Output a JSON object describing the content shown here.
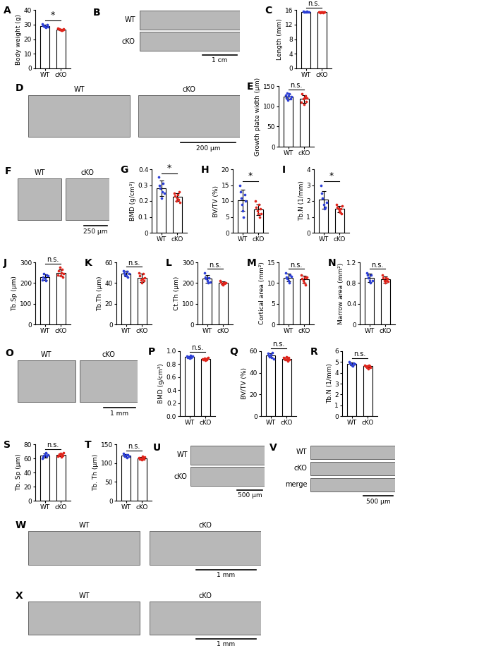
{
  "chart_data": [
    {
      "type": "bar",
      "panel": "A",
      "categories": [
        "WT",
        "cKO"
      ],
      "y_label": "Body weight (g)",
      "values": [
        29.0,
        26.6
      ],
      "errors": [
        0.8,
        0.6
      ],
      "points": [
        [
          30.5,
          29.5,
          29,
          28.8,
          28.5,
          28,
          29.8,
          28.3
        ],
        [
          27.5,
          27,
          26.8,
          26.5,
          26.3,
          26,
          25.8,
          26.6,
          27.2,
          26.4
        ]
      ],
      "significance": "*",
      "colors": [
        "#2c3fd6",
        "#e0241b"
      ],
      "ylim": [
        0,
        40
      ],
      "yticks": [
        0,
        10,
        20,
        30,
        40
      ]
    },
    {
      "type": "bar",
      "panel": "C",
      "categories": [
        "WT",
        "cKO"
      ],
      "y_label": "Length (mm)",
      "values": [
        15.5,
        15.4
      ],
      "errors": [
        0.1,
        0.1
      ],
      "points": [
        [
          15.6,
          15.5,
          15.5,
          15.4,
          15.6,
          15.5,
          15.4
        ],
        [
          15.4,
          15.5,
          15.3,
          15.4,
          15.5,
          15.4,
          15.3,
          15.4,
          15.5
        ]
      ],
      "significance": "n.s.",
      "colors": [
        "#2c3fd6",
        "#e0241b"
      ],
      "ylim": [
        0,
        16
      ],
      "yticks": [
        0,
        4,
        8,
        12,
        16
      ]
    },
    {
      "type": "bar",
      "panel": "E",
      "categories": [
        "WT",
        "cKO"
      ],
      "y_label": "Growth plate width (µm)",
      "values": [
        124,
        118
      ],
      "errors": [
        7,
        9
      ],
      "points": [
        [
          128,
          120,
          132,
          115,
          125,
          130,
          118,
          124
        ],
        [
          110,
          130,
          118,
          105,
          122,
          126,
          112,
          121
        ]
      ],
      "significance": "n.s.",
      "colors": [
        "#2c3fd6",
        "#e0241b"
      ],
      "ylim": [
        0,
        150
      ],
      "yticks": [
        0,
        50,
        100,
        150
      ]
    },
    {
      "type": "bar",
      "panel": "G",
      "categories": [
        "WT",
        "cKO"
      ],
      "y_label": "BMD (g/cm³)",
      "values": [
        0.281,
        0.225
      ],
      "errors": [
        0.05,
        0.025
      ],
      "points": [
        [
          0.35,
          0.3,
          0.28,
          0.22,
          0.26,
          0.31,
          0.25
        ],
        [
          0.25,
          0.23,
          0.2,
          0.22,
          0.24,
          0.21,
          0.26,
          0.19
        ]
      ],
      "significance": "*",
      "colors": [
        "#2c3fd6",
        "#e0241b"
      ],
      "ylim": [
        0,
        0.4
      ],
      "yticks": [
        0,
        0.1,
        0.2,
        0.3,
        0.4
      ]
    },
    {
      "type": "bar",
      "panel": "H",
      "categories": [
        "WT",
        "cKO"
      ],
      "y_label": "BV/TV (%)",
      "values": [
        10.3,
        7.3
      ],
      "errors": [
        3.3,
        1.7
      ],
      "points": [
        [
          15,
          13,
          11,
          9,
          7,
          5,
          12,
          10
        ],
        [
          10,
          8,
          7,
          6,
          9,
          5,
          7.5,
          6
        ]
      ],
      "significance": "*",
      "colors": [
        "#2c3fd6",
        "#e0241b"
      ],
      "ylim": [
        0,
        20
      ],
      "yticks": [
        0,
        5,
        10,
        15,
        20
      ]
    },
    {
      "type": "bar",
      "panel": "I",
      "categories": [
        "WT",
        "cKO"
      ],
      "y_label": "Tb.N (1/mm)",
      "values": [
        2.07,
        1.5
      ],
      "errors": [
        0.55,
        0.2
      ],
      "points": [
        [
          3,
          2.5,
          2.2,
          1.8,
          1.5,
          1.6,
          1.9
        ],
        [
          1.8,
          1.6,
          1.5,
          1.4,
          1.3,
          1.5,
          1.2,
          1.7
        ]
      ],
      "significance": "*",
      "colors": [
        "#2c3fd6",
        "#e0241b"
      ],
      "ylim": [
        0,
        4
      ],
      "yticks": [
        0,
        1,
        2,
        3,
        4
      ]
    },
    {
      "type": "bar",
      "panel": "J",
      "categories": [
        "WT",
        "cKO"
      ],
      "y_label": "Tb.Sp (µm)",
      "values": [
        228,
        250
      ],
      "errors": [
        14,
        16
      ],
      "points": [
        [
          215,
          230,
          245,
          220,
          210,
          240,
          235
        ],
        [
          240,
          260,
          275,
          235,
          250,
          265,
          230,
          245
        ]
      ],
      "significance": "n.s.",
      "colors": [
        "#2c3fd6",
        "#e0241b"
      ],
      "ylim": [
        0,
        300
      ],
      "yticks": [
        0,
        100,
        200,
        300
      ]
    },
    {
      "type": "bar",
      "panel": "K",
      "categories": [
        "WT",
        "cKO"
      ],
      "y_label": "Tb.Th (µm)",
      "values": [
        49,
        45
      ],
      "errors": [
        2.5,
        4
      ],
      "points": [
        [
          52,
          50,
          48,
          47,
          51,
          46,
          49
        ],
        [
          50,
          47,
          43,
          40,
          44,
          49,
          42,
          45
        ]
      ],
      "significance": "n.s.",
      "colors": [
        "#2c3fd6",
        "#e0241b"
      ],
      "ylim": [
        0,
        60
      ],
      "yticks": [
        0,
        20,
        40,
        60
      ]
    },
    {
      "type": "bar",
      "panel": "L",
      "categories": [
        "WT",
        "cKO"
      ],
      "y_label": "Ct.Th (µm)",
      "values": [
        220,
        200
      ],
      "errors": [
        20,
        7
      ],
      "points": [
        [
          250,
          230,
          220,
          210,
          200,
          225,
          205
        ],
        [
          210,
          205,
          195,
          190,
          200,
          198,
          202,
          200
        ]
      ],
      "significance": "n.s.",
      "colors": [
        "#2c3fd6",
        "#e0241b"
      ],
      "ylim": [
        0,
        300
      ],
      "yticks": [
        0,
        100,
        200,
        300
      ]
    },
    {
      "type": "bar",
      "panel": "M",
      "categories": [
        "WT",
        "cKO"
      ],
      "y_label": "Cortical area (mm²)",
      "values": [
        11.3,
        10.9
      ],
      "errors": [
        0.9,
        0.9
      ],
      "points": [
        [
          12.5,
          11.5,
          11,
          10.5,
          10,
          12,
          11.6
        ],
        [
          12,
          11,
          10.5,
          10,
          11.5,
          9.5,
          11.2,
          11.5
        ]
      ],
      "significance": "n.s.",
      "colors": [
        "#2c3fd6",
        "#e0241b"
      ],
      "ylim": [
        0,
        15
      ],
      "yticks": [
        0,
        5,
        10,
        15
      ]
    },
    {
      "type": "bar",
      "panel": "N",
      "categories": [
        "WT",
        "cKO"
      ],
      "y_label": "Marrow area (mm²)",
      "values": [
        0.9,
        0.87
      ],
      "errors": [
        0.08,
        0.06
      ],
      "points": [
        [
          1.0,
          0.95,
          0.9,
          0.85,
          0.8,
          0.95,
          0.85
        ],
        [
          0.95,
          0.9,
          0.85,
          0.8,
          0.9,
          0.85,
          0.88,
          0.83
        ]
      ],
      "significance": "n.s.",
      "colors": [
        "#2c3fd6",
        "#e0241b"
      ],
      "ylim": [
        0,
        1.2
      ],
      "yticks": [
        0,
        0.4,
        0.8,
        1.2
      ]
    },
    {
      "type": "bar",
      "panel": "P",
      "categories": [
        "WT",
        "cKO"
      ],
      "y_label": "BMD (g/cm³)",
      "values": [
        0.91,
        0.88
      ],
      "errors": [
        0.015,
        0.012
      ],
      "points": [
        [
          0.92,
          0.9,
          0.91,
          0.89,
          0.93,
          0.9,
          0.92
        ],
        [
          0.88,
          0.87,
          0.89,
          0.86,
          0.88,
          0.87,
          0.89,
          0.9
        ]
      ],
      "significance": "n.s.",
      "colors": [
        "#2c3fd6",
        "#e0241b"
      ],
      "ylim": [
        0,
        1.0
      ],
      "yticks": [
        {
          "value": 0,
          "label": "0.0"
        },
        {
          "value": 0.2,
          "label": "0.2"
        },
        {
          "value": 0.4,
          "label": "0.4"
        },
        {
          "value": 0.6,
          "label": "0.6"
        },
        {
          "value": 0.8,
          "label": "0.8"
        },
        {
          "value": 1.0,
          "label": "1.0"
        }
      ]
    },
    {
      "type": "bar",
      "panel": "Q",
      "categories": [
        "WT",
        "cKO"
      ],
      "y_label": "BV/TV (%)",
      "values": [
        56,
        53
      ],
      "errors": [
        2,
        1.3
      ],
      "points": [
        [
          58,
          56,
          55,
          57,
          54,
          59,
          53
        ],
        [
          54,
          53,
          52,
          55,
          53,
          51,
          54,
          52
        ]
      ],
      "significance": "n.s.",
      "colors": [
        "#2c3fd6",
        "#e0241b"
      ],
      "ylim": [
        0,
        60
      ],
      "yticks": [
        0,
        20,
        40,
        60
      ]
    },
    {
      "type": "bar",
      "panel": "R",
      "categories": [
        "WT",
        "cKO"
      ],
      "y_label": "Tb.N (1/mm)",
      "values": [
        4.8,
        4.6
      ],
      "errors": [
        0.13,
        0.1
      ],
      "points": [
        [
          5.0,
          4.9,
          4.8,
          4.7,
          4.6,
          4.9,
          4.8
        ],
        [
          4.7,
          4.6,
          4.5,
          4.6,
          4.4,
          4.7,
          4.6,
          4.5
        ]
      ],
      "significance": "n.s.",
      "colors": [
        "#2c3fd6",
        "#e0241b"
      ],
      "ylim": [
        0,
        6
      ],
      "yticks": [
        0,
        1,
        2,
        3,
        4,
        5,
        6
      ]
    },
    {
      "type": "bar",
      "panel": "S",
      "categories": [
        "WT",
        "cKO"
      ],
      "y_label": "Tb. Sp (µm)",
      "values": [
        64,
        65
      ],
      "errors": [
        3,
        2
      ],
      "points": [
        [
          60,
          62,
          64,
          66,
          68,
          63,
          65
        ],
        [
          63,
          64,
          66,
          65,
          67,
          62,
          66,
          64,
          68
        ]
      ],
      "significance": "n.s.",
      "colors": [
        "#2c3fd6",
        "#e0241b"
      ],
      "ylim": [
        0,
        80
      ],
      "yticks": [
        0,
        20,
        40,
        60,
        80
      ]
    },
    {
      "type": "bar",
      "panel": "T",
      "categories": [
        "WT",
        "cKO"
      ],
      "y_label": "Tb. Th (µm)",
      "values": [
        120,
        113
      ],
      "errors": [
        3,
        4
      ],
      "points": [
        [
          125,
          120,
          118,
          122,
          115,
          121,
          119
        ],
        [
          115,
          110,
          112,
          108,
          118,
          113,
          111,
          117
        ]
      ],
      "significance": "n.s.",
      "colors": [
        "#2c3fd6",
        "#e0241b"
      ],
      "ylim": [
        0,
        150
      ],
      "yticks": [
        0,
        50,
        100,
        150
      ]
    }
  ],
  "image_panels": [
    {
      "panel": "B",
      "labels": [
        "WT",
        "cKO"
      ],
      "scale_bar": "1 cm"
    },
    {
      "panel": "D",
      "labels": [
        "WT",
        "cKO"
      ],
      "scale_bar": "200 µm"
    },
    {
      "panel": "F",
      "labels": [
        "WT",
        "cKO"
      ],
      "scale_bar": "250 µm"
    },
    {
      "panel": "O",
      "labels": [
        "WT",
        "cKO"
      ],
      "scale_bar": "1 mm"
    },
    {
      "panel": "U",
      "labels": [
        "WT",
        "cKO"
      ],
      "scale_bar": "500 µm"
    },
    {
      "panel": "V",
      "labels": [
        "WT",
        "cKO",
        "merge"
      ],
      "scale_bar": "500 µm"
    },
    {
      "panel": "W",
      "labels": [
        "WT",
        "cKO"
      ],
      "scale_bar": "1 mm"
    },
    {
      "panel": "X",
      "labels": [
        "WT",
        "cKO"
      ],
      "scale_bar": "1 mm"
    }
  ]
}
